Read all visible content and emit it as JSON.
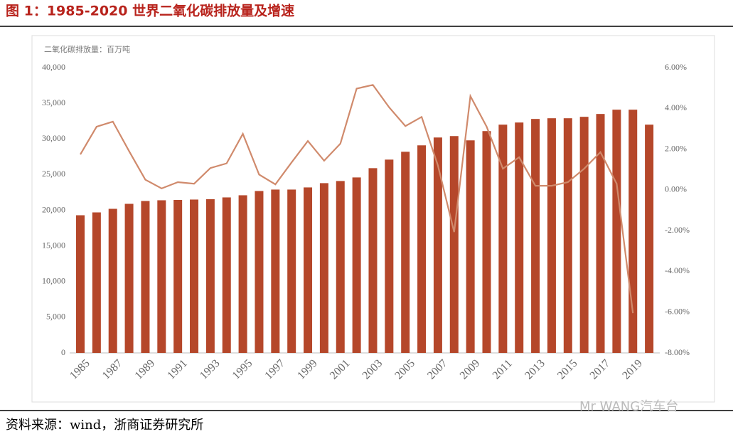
{
  "header": {
    "title": "图 1：1985-2020 世界二氧化碳排放量及增速"
  },
  "chart_data": {
    "type": "bar-line",
    "axis_label": "二氧化碳排放量：百万吨",
    "categories": [
      "1985",
      null,
      "1987",
      null,
      "1989",
      null,
      "1991",
      null,
      "1993",
      null,
      "1995",
      null,
      "1997",
      null,
      "1999",
      null,
      "2001",
      null,
      "2003",
      null,
      "2005",
      null,
      "2007",
      null,
      "2009",
      null,
      "2011",
      null,
      "2013",
      null,
      "2015",
      null,
      "2017",
      null,
      "2019",
      null
    ],
    "series": [
      {
        "type": "bar",
        "color": "#b5472a",
        "values": [
          19300,
          19700,
          20200,
          20900,
          21300,
          21400,
          21450,
          21500,
          21550,
          21800,
          22100,
          22700,
          22900,
          22900,
          23200,
          23800,
          24100,
          24600,
          25900,
          27100,
          28200,
          29100,
          30200,
          30400,
          29800,
          31100,
          32000,
          32300,
          32800,
          32900,
          32900,
          33100,
          33500,
          34100,
          34100,
          32000
        ]
      },
      {
        "type": "line",
        "axis": "y2",
        "color": "#d08a6c",
        "values": [
          1.74,
          3.1,
          3.35,
          1.9,
          0.5,
          0.07,
          0.38,
          0.3,
          1.07,
          1.3,
          2.75,
          0.75,
          0.27,
          1.35,
          2.4,
          1.43,
          2.27,
          4.97,
          5.15,
          4.05,
          3.13,
          3.58,
          1.2,
          -2.07,
          4.6,
          3.1,
          1.04,
          1.6,
          0.2,
          0.2,
          0.38,
          1.04,
          1.85,
          0.3,
          -6.05,
          null
        ]
      }
    ],
    "ylim": [
      0,
      40000
    ],
    "yticks": [
      0,
      {
        "value": 5000,
        "label": "5,000"
      },
      {
        "value": 10000,
        "label": "10,000"
      },
      {
        "value": 15000,
        "label": "15,000"
      },
      {
        "value": 20000,
        "label": "20,000"
      },
      {
        "value": 25000,
        "label": "25,000"
      },
      {
        "value": 30000,
        "label": "30,000"
      },
      {
        "value": 35000,
        "label": "35,000"
      },
      {
        "value": 40000,
        "label": "40,000"
      }
    ],
    "y2lim": [
      -8,
      6
    ],
    "y2ticks": [
      {
        "value": -8,
        "label": "-8.00%"
      },
      {
        "value": -6,
        "label": "-6.00%"
      },
      {
        "value": -4,
        "label": "-4.00%"
      },
      {
        "value": -2,
        "label": "-2.00%"
      },
      {
        "value": 0,
        "label": "0.00%"
      },
      {
        "value": 2,
        "label": "2.00%"
      },
      {
        "value": 4,
        "label": "4.00%"
      },
      {
        "value": 6,
        "label": "6.00%"
      }
    ]
  },
  "footer": {
    "source": "资料来源：wind，浙商证券研究所",
    "watermark": "Mr WANG汽车台"
  }
}
